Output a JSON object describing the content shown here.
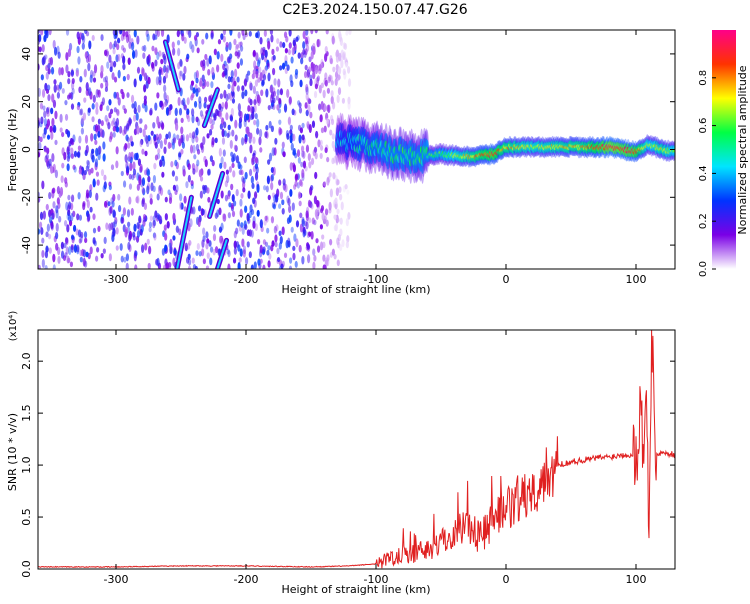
{
  "title": "C2E3.2024.150.07.47.G26",
  "chart_data": [
    {
      "type": "heatmap",
      "title": "C2E3.2024.150.07.47.G26",
      "xlabel": "Height of straight line (km)",
      "ylabel": "Frequency (Hz)",
      "xlim": [
        -360,
        130
      ],
      "ylim": [
        -50,
        50
      ],
      "xticks": [
        -300,
        -200,
        -100,
        0,
        100
      ],
      "yticks": [
        -40,
        -20,
        0,
        20,
        40
      ],
      "colorbar": {
        "label": "Normalized spectral amplitude",
        "range": [
          0.0,
          1.0
        ],
        "ticks": [
          "0.0",
          "0.2",
          "0.4",
          "0.6",
          "0.8"
        ],
        "colors": [
          "#ffffff",
          "#7a00e6",
          "#0033ff",
          "#00e5ff",
          "#00ff44",
          "#ffff00",
          "#ff3300",
          "#ff0088"
        ]
      },
      "ridge": {
        "x": [
          -130,
          -110,
          -90,
          -70,
          -50,
          -30,
          -10,
          0,
          20,
          40,
          60,
          80,
          100,
          110,
          120,
          130
        ],
        "freq_hz": [
          4,
          2,
          -1,
          -3,
          -2,
          -3,
          -2,
          1,
          1,
          1,
          1,
          1,
          -1,
          2,
          0,
          -1
        ],
        "amplitude": [
          0.35,
          0.45,
          0.5,
          0.5,
          0.55,
          0.7,
          0.85,
          0.75,
          0.65,
          0.7,
          0.75,
          0.9,
          0.85,
          0.6,
          0.7,
          0.6
        ]
      },
      "streaks": [
        {
          "x": [
            -262,
            -252
          ],
          "freq_hz": [
            45,
            25
          ]
        },
        {
          "x": [
            -253,
            -242
          ],
          "freq_hz": [
            -50,
            -20
          ]
        },
        {
          "x": [
            -232,
            -222
          ],
          "freq_hz": [
            10,
            25
          ]
        },
        {
          "x": [
            -222,
            -215
          ],
          "freq_hz": [
            -50,
            -38
          ]
        },
        {
          "x": [
            -228,
            -218
          ],
          "freq_hz": [
            -28,
            -10
          ]
        }
      ],
      "noise_region": {
        "x": [
          -360,
          -120
        ],
        "amplitude": 0.25
      },
      "colors": {
        "line": "#000000"
      }
    },
    {
      "type": "line",
      "xlabel": "Height of straight line (km)",
      "ylabel": "SNR (10 * v/v)",
      "ylabel_scale": "(x10⁴)",
      "xlim": [
        -360,
        130
      ],
      "ylim": [
        0.0,
        2.3
      ],
      "xticks": [
        -300,
        -200,
        -100,
        0,
        100
      ],
      "yticks": [
        "0.0",
        "0.5",
        "1.0",
        "1.5",
        "2.0"
      ],
      "series": [
        {
          "color": "#e02020",
          "x": [
            -360,
            -300,
            -250,
            -200,
            -150,
            -120,
            -100,
            -90,
            -80,
            -70,
            -60,
            -50,
            -40,
            -30,
            -20,
            -10,
            0,
            10,
            20,
            30,
            40,
            50,
            60,
            70,
            80,
            90,
            100,
            102,
            104,
            106,
            108,
            110,
            112,
            115,
            120,
            130
          ],
          "y": [
            0.02,
            0.02,
            0.03,
            0.03,
            0.02,
            0.03,
            0.05,
            0.1,
            0.15,
            0.15,
            0.2,
            0.25,
            0.35,
            0.45,
            0.3,
            0.5,
            0.55,
            0.65,
            0.75,
            0.9,
            1.0,
            1.03,
            1.05,
            1.07,
            1.08,
            1.1,
            1.1,
            1.3,
            1.7,
            0.8,
            1.9,
            0.3,
            2.3,
            1.1,
            1.12,
            1.1
          ]
        }
      ]
    }
  ]
}
